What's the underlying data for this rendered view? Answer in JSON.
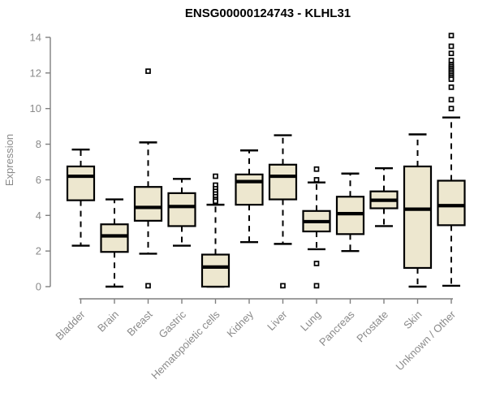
{
  "title": "ENSG00000124743 - KLHL31",
  "chart_data": {
    "type": "boxplot",
    "title": "ENSG00000124743 - KLHL31",
    "xlabel": "",
    "ylabel": "Expression",
    "ylim": [
      0,
      14
    ],
    "yticks": [
      0,
      2,
      4,
      6,
      8,
      10,
      12,
      14
    ],
    "grid": false,
    "legend": "none",
    "categories": [
      "Bladder",
      "Brain",
      "Breast",
      "Gastric",
      "Hematopoietic cells",
      "Kidney",
      "Liver",
      "Lung",
      "Pancreas",
      "Prostate",
      "Skin",
      "Unknown / Other"
    ],
    "boxes": [
      {
        "label": "Bladder",
        "whisker_low": 2.3,
        "q1": 4.85,
        "median": 6.2,
        "q3": 6.75,
        "whisker_high": 7.7,
        "outliers": []
      },
      {
        "label": "Brain",
        "whisker_low": 0.0,
        "q1": 1.95,
        "median": 2.85,
        "q3": 3.5,
        "whisker_high": 4.9,
        "outliers": []
      },
      {
        "label": "Breast",
        "whisker_low": 1.85,
        "q1": 3.7,
        "median": 4.45,
        "q3": 5.6,
        "whisker_high": 8.1,
        "outliers": [
          12.1,
          0.05
        ]
      },
      {
        "label": "Gastric",
        "whisker_low": 2.3,
        "q1": 3.4,
        "median": 4.5,
        "q3": 5.25,
        "whisker_high": 6.05,
        "outliers": []
      },
      {
        "label": "Hematopoietic cells",
        "whisker_low": 0.0,
        "q1": 0.0,
        "median": 1.1,
        "q3": 1.8,
        "whisker_high": 4.6,
        "outliers": [
          6.2,
          5.7,
          5.5,
          5.35,
          5.2,
          5.05,
          4.9,
          4.8
        ]
      },
      {
        "label": "Kidney",
        "whisker_low": 2.5,
        "q1": 4.6,
        "median": 5.9,
        "q3": 6.3,
        "whisker_high": 7.65,
        "outliers": []
      },
      {
        "label": "Liver",
        "whisker_low": 2.4,
        "q1": 4.9,
        "median": 6.2,
        "q3": 6.85,
        "whisker_high": 8.5,
        "outliers": [
          0.05
        ]
      },
      {
        "label": "Lung",
        "whisker_low": 2.1,
        "q1": 3.1,
        "median": 3.65,
        "q3": 4.25,
        "whisker_high": 5.85,
        "outliers": [
          6.6,
          6.0,
          1.3,
          0.05
        ]
      },
      {
        "label": "Pancreas",
        "whisker_low": 2.0,
        "q1": 2.95,
        "median": 4.1,
        "q3": 5.05,
        "whisker_high": 6.35,
        "outliers": []
      },
      {
        "label": "Prostate",
        "whisker_low": 3.4,
        "q1": 4.4,
        "median": 4.85,
        "q3": 5.35,
        "whisker_high": 6.65,
        "outliers": []
      },
      {
        "label": "Skin",
        "whisker_low": 0.0,
        "q1": 1.05,
        "median": 4.35,
        "q3": 6.75,
        "whisker_high": 8.55,
        "outliers": []
      },
      {
        "label": "Unknown / Other",
        "whisker_low": 0.05,
        "q1": 3.45,
        "median": 4.55,
        "q3": 5.95,
        "whisker_high": 9.5,
        "outliers": [
          14.1,
          13.5,
          13.1,
          12.7,
          12.45,
          12.35,
          12.25,
          12.15,
          12.05,
          11.95,
          11.85,
          11.75,
          11.65,
          11.2,
          10.5,
          10.0
        ]
      }
    ],
    "colors": {
      "box_fill": "#EDE7CF",
      "box_stroke": "#000000",
      "median": "#000000",
      "whisker": "#000000",
      "outlier_stroke": "#000000",
      "outlier_fill": "#FFFFFF",
      "axis": "#7F7F7F",
      "tick_label": "#8A8A8A",
      "title": "#000000"
    }
  }
}
